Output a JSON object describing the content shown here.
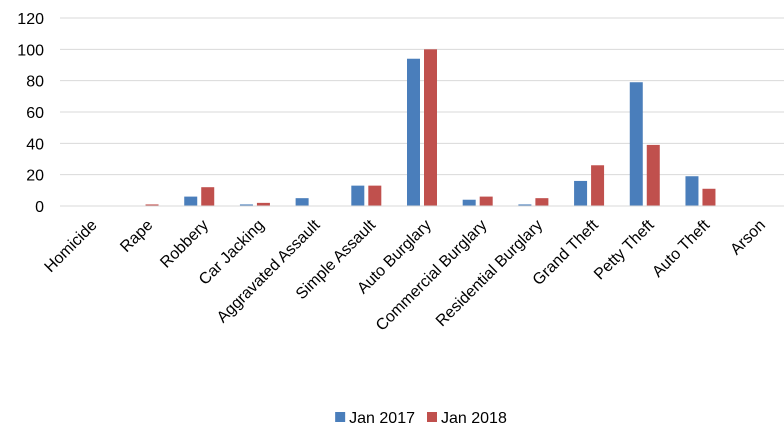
{
  "chart_data": {
    "type": "bar",
    "categories": [
      "Homicide",
      "Rape",
      "Robbery",
      "Car Jacking",
      "Aggravated Assault",
      "Simple Assault",
      "Auto Burglary",
      "Commercial Burglary",
      "Residential Burglary",
      "Grand Theft",
      "Petty Theft",
      "Auto Theft",
      "Arson"
    ],
    "series": [
      {
        "name": "Jan 2017",
        "color": "#4a7ebb",
        "values": [
          0,
          0,
          6,
          1,
          5,
          13,
          94,
          4,
          1,
          16,
          79,
          19,
          0
        ]
      },
      {
        "name": "Jan 2018",
        "color": "#c0504d",
        "values": [
          0,
          1,
          12,
          2,
          0,
          13,
          100,
          6,
          5,
          26,
          39,
          11,
          0
        ]
      }
    ],
    "y_ticks": [
      "0",
      "20",
      "40",
      "60",
      "80",
      "100",
      "120"
    ],
    "ylim": [
      0,
      120
    ],
    "grid": true,
    "legend_position": "bottom",
    "title": "",
    "xlabel": "",
    "ylabel": ""
  }
}
